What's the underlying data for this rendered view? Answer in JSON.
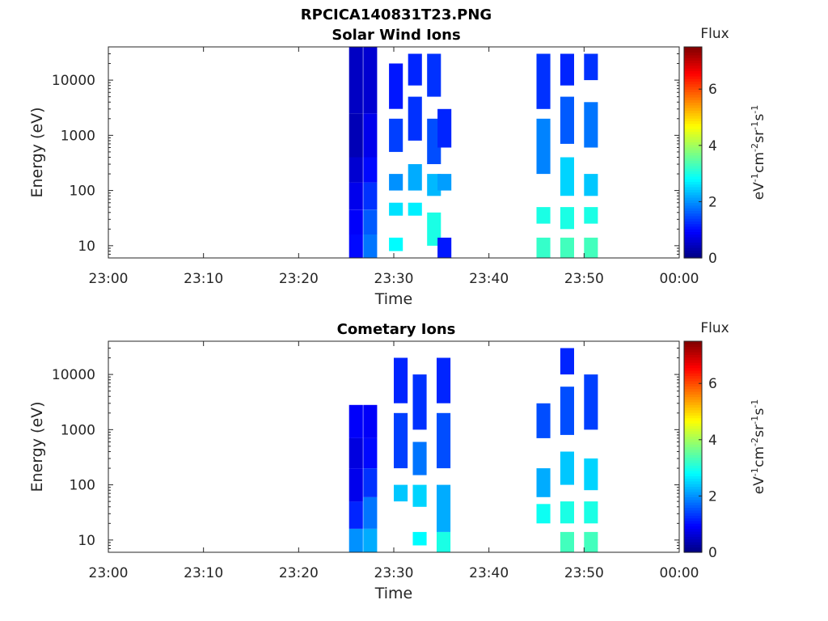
{
  "figure_title": "RPCICA140831T23.PNG",
  "colorbar_title": "Flux",
  "colorbar_label_parts": [
    "eV",
    "-1",
    "cm",
    "-2",
    "sr",
    "-1",
    "s",
    "-1"
  ],
  "colorbar_ticks": [
    "0",
    "2",
    "4",
    "6"
  ],
  "colorbar_range": [
    0,
    7.5
  ],
  "colormap": "jet",
  "chart_data": [
    {
      "type": "heatmap",
      "title": "Solar Wind Ions",
      "xlabel": "Time",
      "ylabel": "Energy (eV)",
      "xticks": [
        "23:00",
        "23:10",
        "23:20",
        "23:30",
        "23:40",
        "23:50",
        "00:00"
      ],
      "yticks": [
        "10",
        "100",
        "1000",
        "10000"
      ],
      "xlim_min": [
        0,
        60
      ],
      "ylim_eV": [
        6,
        40000
      ],
      "yscale": "log",
      "grid": false,
      "columns": [
        {
          "t_min": 25.3,
          "bins": [
            [
              6,
              16,
              1.0
            ],
            [
              16,
              45,
              0.9
            ],
            [
              45,
              140,
              0.8
            ],
            [
              140,
              400,
              0.6
            ],
            [
              400,
              2500,
              0.4
            ],
            [
              2500,
              40000,
              0.5
            ]
          ]
        },
        {
          "t_min": 26.8,
          "bins": [
            [
              6,
              16,
              1.8
            ],
            [
              16,
              45,
              1.6
            ],
            [
              45,
              140,
              1.3
            ],
            [
              140,
              400,
              1.0
            ],
            [
              400,
              2500,
              0.8
            ],
            [
              2500,
              40000,
              0.6
            ]
          ]
        },
        {
          "t_min": 29.5,
          "bins": [
            [
              8,
              14,
              2.8
            ],
            [
              35,
              60,
              2.6
            ],
            [
              100,
              200,
              2.0
            ],
            [
              500,
              2000,
              1.4
            ],
            [
              3000,
              20000,
              1.1
            ]
          ]
        },
        {
          "t_min": 31.5,
          "bins": [
            [
              35,
              60,
              2.7
            ],
            [
              100,
              300,
              2.2
            ],
            [
              800,
              5000,
              1.3
            ],
            [
              8000,
              30000,
              1.2
            ]
          ]
        },
        {
          "t_min": 33.5,
          "bins": [
            [
              10,
              40,
              3.0
            ],
            [
              80,
              200,
              2.3
            ],
            [
              300,
              2000,
              1.5
            ],
            [
              5000,
              30000,
              1.3
            ]
          ]
        },
        {
          "t_min": 34.6,
          "bins": [
            [
              6,
              14,
              1.1
            ],
            [
              100,
              200,
              2.1
            ],
            [
              600,
              3000,
              1.2
            ]
          ]
        },
        {
          "t_min": 45.0,
          "bins": [
            [
              6,
              14,
              3.2
            ],
            [
              25,
              50,
              3.0
            ],
            [
              200,
              2000,
              1.9
            ],
            [
              3000,
              30000,
              1.3
            ]
          ]
        },
        {
          "t_min": 47.5,
          "bins": [
            [
              6,
              14,
              3.3
            ],
            [
              20,
              50,
              3.0
            ],
            [
              80,
              400,
              2.5
            ],
            [
              700,
              5000,
              1.6
            ],
            [
              8000,
              30000,
              1.2
            ]
          ]
        },
        {
          "t_min": 50.0,
          "bins": [
            [
              6,
              14,
              3.3
            ],
            [
              25,
              50,
              3.0
            ],
            [
              80,
              200,
              2.4
            ],
            [
              600,
              4000,
              1.8
            ],
            [
              10000,
              30000,
              1.3
            ]
          ]
        }
      ]
    },
    {
      "type": "heatmap",
      "title": "Cometary Ions",
      "xlabel": "Time",
      "ylabel": "Energy (eV)",
      "xticks": [
        "23:00",
        "23:10",
        "23:20",
        "23:30",
        "23:40",
        "23:50",
        "00:00"
      ],
      "yticks": [
        "10",
        "100",
        "1000",
        "10000"
      ],
      "xlim_min": [
        0,
        60
      ],
      "ylim_eV": [
        6,
        40000
      ],
      "yscale": "log",
      "grid": false,
      "columns": [
        {
          "t_min": 25.3,
          "bins": [
            [
              6,
              16,
              2.0
            ],
            [
              16,
              50,
              1.2
            ],
            [
              50,
              200,
              0.8
            ],
            [
              200,
              700,
              0.7
            ],
            [
              700,
              2800,
              0.9
            ]
          ]
        },
        {
          "t_min": 26.8,
          "bins": [
            [
              6,
              16,
              2.2
            ],
            [
              16,
              60,
              1.8
            ],
            [
              60,
              200,
              1.3
            ],
            [
              200,
              700,
              1.0
            ],
            [
              700,
              2800,
              0.9
            ]
          ]
        },
        {
          "t_min": 30.0,
          "bins": [
            [
              50,
              100,
              2.4
            ],
            [
              200,
              2000,
              1.4
            ],
            [
              3000,
              20000,
              1.2
            ]
          ]
        },
        {
          "t_min": 32.0,
          "bins": [
            [
              8,
              14,
              2.8
            ],
            [
              40,
              100,
              2.5
            ],
            [
              150,
              600,
              1.8
            ],
            [
              1000,
              10000,
              1.3
            ]
          ]
        },
        {
          "t_min": 34.5,
          "bins": [
            [
              6,
              14,
              3.0
            ],
            [
              14,
              100,
              2.2
            ],
            [
              200,
              2000,
              1.5
            ],
            [
              3000,
              20000,
              1.2
            ]
          ]
        },
        {
          "t_min": 45.0,
          "bins": [
            [
              20,
              45,
              2.9
            ],
            [
              60,
              200,
              2.2
            ],
            [
              700,
              3000,
              1.5
            ]
          ]
        },
        {
          "t_min": 47.5,
          "bins": [
            [
              6,
              14,
              3.3
            ],
            [
              20,
              50,
              3.0
            ],
            [
              100,
              400,
              2.4
            ],
            [
              800,
              6000,
              1.5
            ],
            [
              10000,
              30000,
              1.2
            ]
          ]
        },
        {
          "t_min": 50.0,
          "bins": [
            [
              6,
              14,
              3.3
            ],
            [
              20,
              50,
              3.0
            ],
            [
              80,
              300,
              2.5
            ],
            [
              1000,
              10000,
              1.4
            ]
          ]
        }
      ]
    }
  ]
}
